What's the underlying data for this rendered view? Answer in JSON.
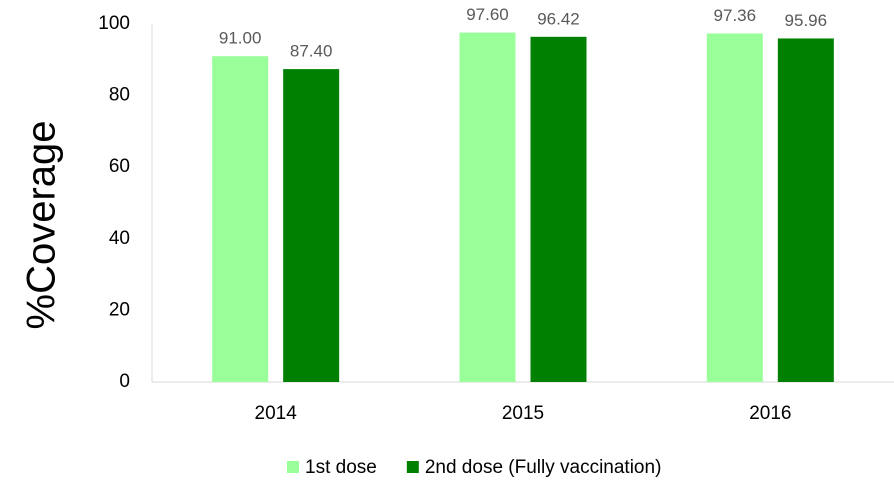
{
  "chart_data": {
    "type": "bar",
    "y_label": "%Coverage",
    "categories": [
      "2014",
      "2015",
      "2016"
    ],
    "series": [
      {
        "name": "1st dose",
        "color": "#99ff99",
        "values": [
          91,
          97.6,
          97.36
        ],
        "value_labels": [
          "91.00",
          "97.60",
          "97.36"
        ]
      },
      {
        "name": "2nd dose (Fully vaccination)",
        "color": "#008000",
        "values": [
          87.4,
          96.42,
          95.96
        ],
        "value_labels": [
          "87.40",
          "96.42",
          "95.96"
        ]
      }
    ],
    "ylim": [
      0,
      100
    ],
    "yticks": [
      0,
      20,
      40,
      60,
      80,
      100
    ],
    "grid": false,
    "legend": "bottom"
  }
}
